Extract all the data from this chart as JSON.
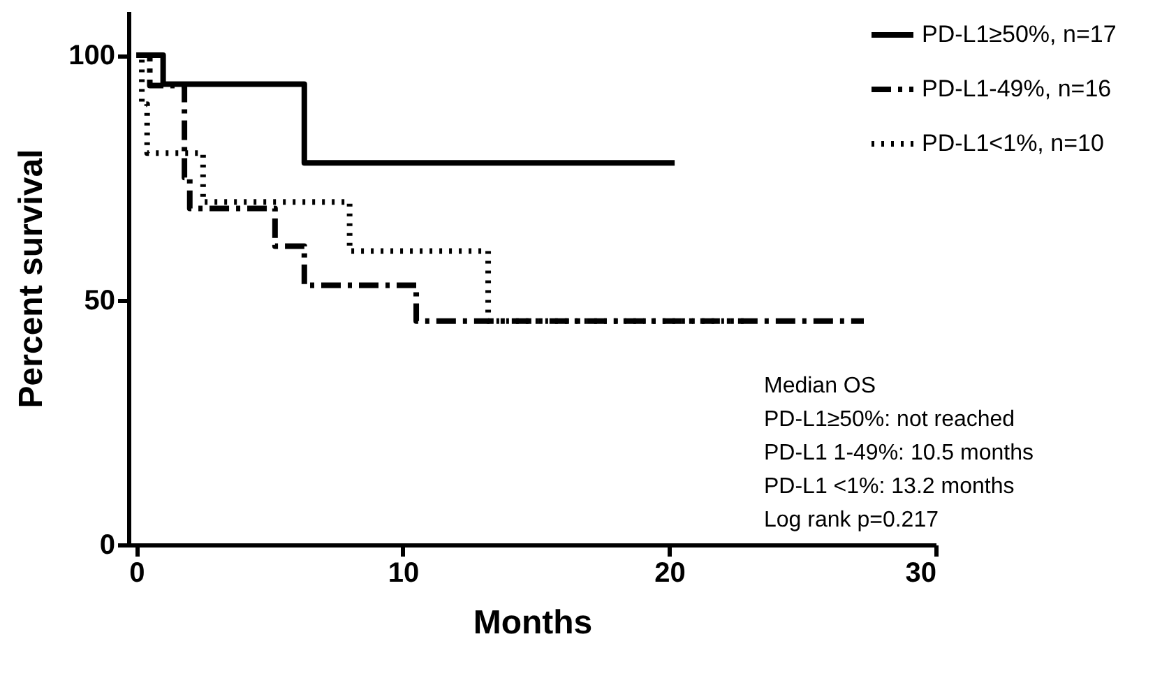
{
  "chart_data": {
    "type": "step",
    "xlabel": "Months",
    "ylabel": "Percent survival",
    "xlim": [
      -0.3,
      30
    ],
    "xticks": [
      0,
      10,
      20,
      30
    ],
    "ylim": [
      0,
      109
    ],
    "yticks": [
      0,
      50,
      100
    ],
    "grid": false,
    "legend": "top right",
    "series": [
      {
        "name": "PD-L1≥50%, n=17",
        "color": "#000000",
        "line_style": "solid",
        "x": [
          0,
          1.0,
          6.3,
          20.2
        ],
        "values": [
          100,
          94.1,
          78,
          78
        ]
      },
      {
        "name": "PD-L1-49%, n=16",
        "color": "#000000",
        "line_style": "dashed",
        "x": [
          0,
          0.5,
          1.8,
          2.0,
          5.2,
          6.3,
          10.5,
          27.3
        ],
        "values": [
          100,
          93.8,
          75,
          68.7,
          61,
          53,
          45.7,
          45.7
        ]
      },
      {
        "name": "PD-L1<1%, n=10",
        "color": "#000000",
        "line_style": "dotted",
        "x": [
          0,
          0.2,
          0.4,
          2.5,
          8.0,
          13.2,
          23.0
        ],
        "values": [
          100,
          90,
          80,
          70,
          60,
          45.7,
          45.7
        ]
      }
    ],
    "annotations": [
      "Median OS",
      "PD-L1≥50%:  not reached",
      "PD-L1 1-49%: 10.5 months",
      "PD-L1 <1%: 13.2 months",
      "Log rank p=0.217"
    ]
  }
}
